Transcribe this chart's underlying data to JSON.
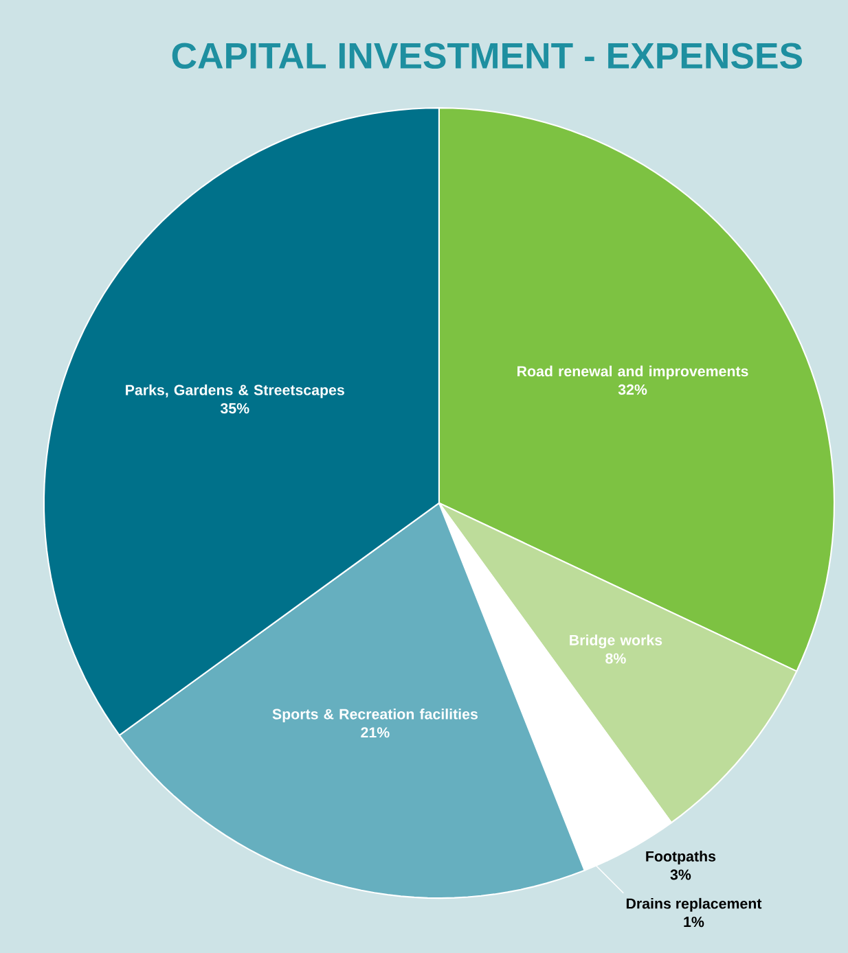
{
  "chart_data": {
    "type": "pie",
    "title": "CAPITAL INVESTMENT - EXPENSES",
    "categories": [
      "Road renewal and improvements",
      "Bridge works",
      "Footpaths",
      "Drains replacement",
      "Sports & Recreation facilities",
      "Parks, Gardens & Streetscapes"
    ],
    "values": [
      32,
      8,
      3,
      1,
      21,
      35
    ],
    "value_labels": [
      "32%",
      "8%",
      "3%",
      "1%",
      "21%",
      "35%"
    ],
    "colors": [
      "#7dc242",
      "#bddc9a",
      "#ffffff",
      "#ffffff",
      "#66afbf",
      "#00718a"
    ]
  }
}
